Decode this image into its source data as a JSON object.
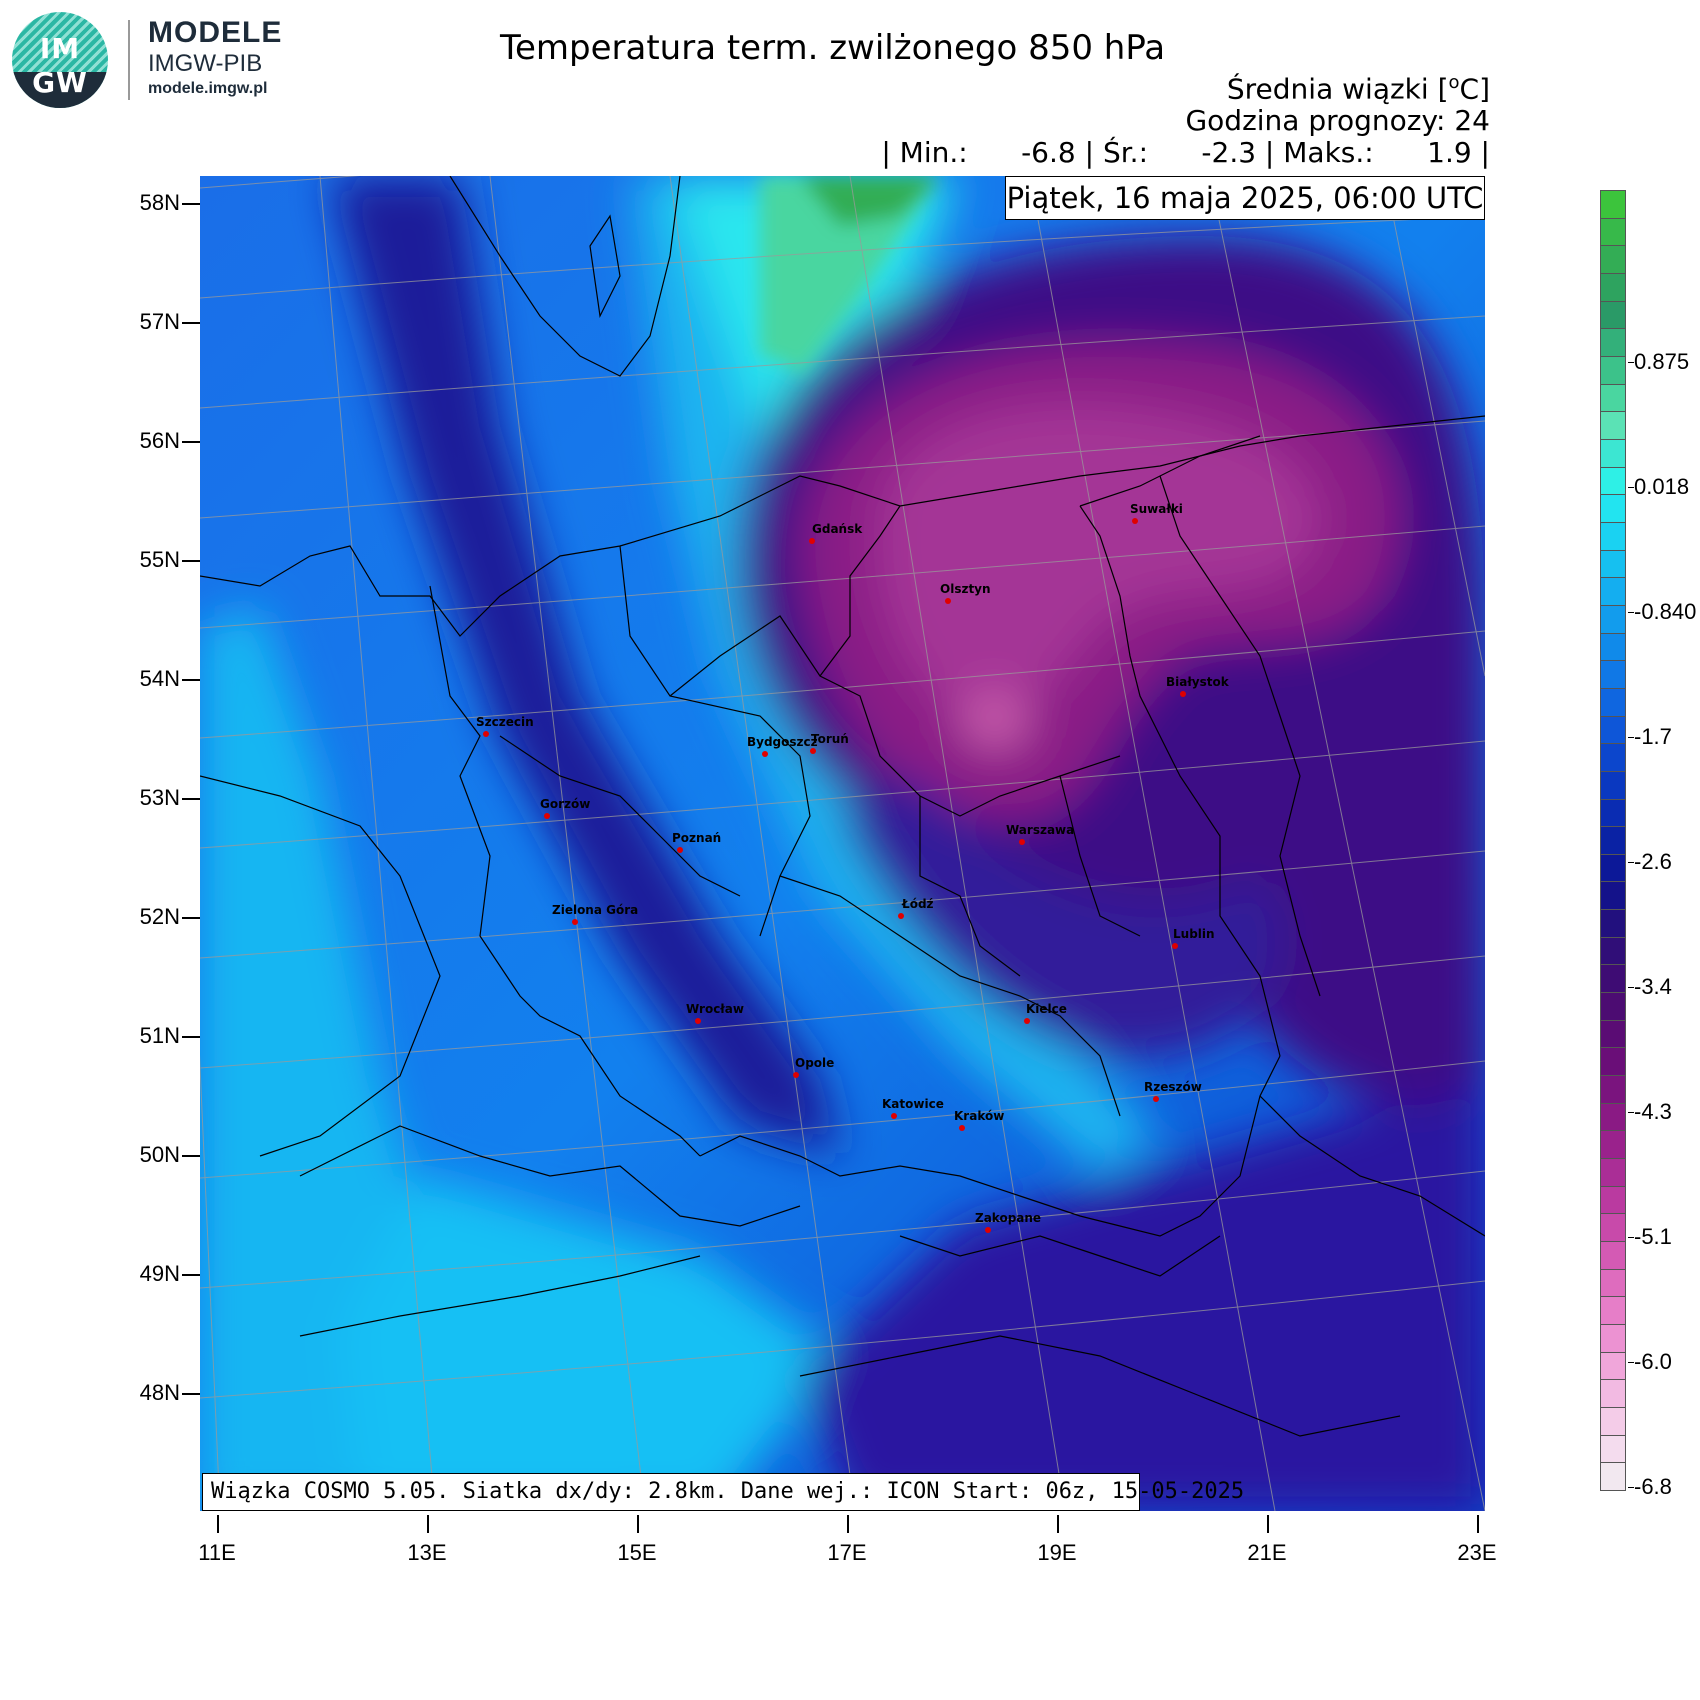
{
  "logo": {
    "top_text": "IM",
    "bottom_text": "GW",
    "line1": "MODELE",
    "line2": "IMGW-PIB",
    "line3": "modele.imgw.pl"
  },
  "header": {
    "title": "Temperatura term. zwilżonego 850 hPa",
    "subtitle_prefix": "Średnia wiązki [",
    "subtitle_unit_sup": "o",
    "subtitle_unit": "C]",
    "forecast_hour": "Godzina prognozy: 24",
    "stats": "| Min.:      -6.8 | Śr.:      -2.3 | Maks.:      1.9 |"
  },
  "date_box": "Piątek, 16 maja 2025, 06:00 UTC",
  "info_box": "Wiązka COSMO 5.05. Siatka dx/dy: 2.8km. Dane wej.: ICON Start: 06z, 15-05-2025",
  "lat_labels": [
    "58N",
    "57N",
    "56N",
    "55N",
    "54N",
    "53N",
    "52N",
    "51N",
    "50N",
    "49N",
    "48N"
  ],
  "lon_labels": [
    "11E",
    "13E",
    "15E",
    "17E",
    "19E",
    "21E",
    "23E"
  ],
  "colorbar": {
    "labels": [
      "0.875",
      "0.018",
      "-0.840",
      "-1.7",
      "-2.6",
      "-3.4",
      "-4.3",
      "-5.1",
      "-6.0",
      "-6.8"
    ],
    "colors": [
      "#3cc43c",
      "#37b94a",
      "#33ad55",
      "#2ea35f",
      "#2a9a67",
      "#33b07a",
      "#3cc28a",
      "#4ad6a0",
      "#5be2b5",
      "#3ce6d2",
      "#2ef0e6",
      "#22e4f0",
      "#1ad2f2",
      "#16c0f0",
      "#14aef0",
      "#129ced",
      "#108aea",
      "#1078e6",
      "#0f66e0",
      "#0e56d8",
      "#0c46cc",
      "#0a38c0",
      "#0a2cb2",
      "#0a22a4",
      "#0c1898",
      "#14128a",
      "#22107e",
      "#300e78",
      "#3e0c74",
      "#4c0c72",
      "#5a0c74",
      "#6a0e78",
      "#7a147e",
      "#8a1a84",
      "#9a228c",
      "#aa2e96",
      "#ba3aa0",
      "#c84aaa",
      "#d45ab4",
      "#de6cbe",
      "#e67ec8",
      "#ec92d2",
      "#f0a6da",
      "#f2bae2",
      "#f4cce8",
      "#f4dcee",
      "#f2e8f0"
    ]
  },
  "map": {
    "min_value": -6.8,
    "mean_value": -2.3,
    "max_value": 1.9,
    "cities": [
      {
        "name": "Gdańsk"
      },
      {
        "name": "Suwałki"
      },
      {
        "name": "Olsztyn"
      },
      {
        "name": "Białystok"
      },
      {
        "name": "Szczecin"
      },
      {
        "name": "Bydgoszcz"
      },
      {
        "name": "Toruń"
      },
      {
        "name": "Gorzów"
      },
      {
        "name": "Poznań"
      },
      {
        "name": "Warszawa"
      },
      {
        "name": "Łódź"
      },
      {
        "name": "Zielona Góra"
      },
      {
        "name": "Lublin"
      },
      {
        "name": "Wrocław"
      },
      {
        "name": "Kielce"
      },
      {
        "name": "Opole"
      },
      {
        "name": "Rzeszów"
      },
      {
        "name": "Katowice"
      },
      {
        "name": "Kraków"
      },
      {
        "name": "Zakopane"
      }
    ]
  }
}
